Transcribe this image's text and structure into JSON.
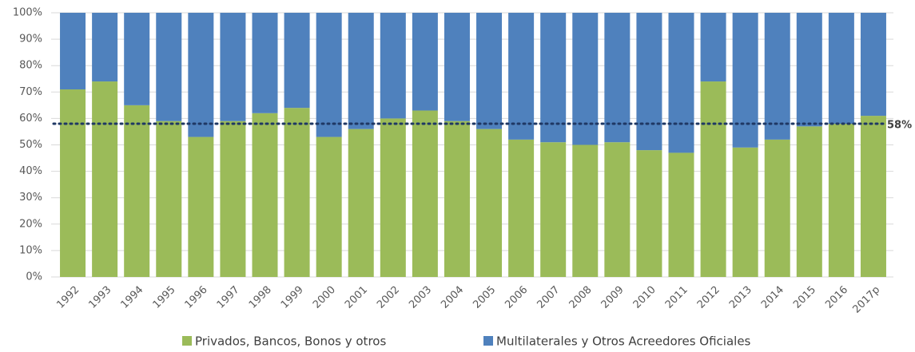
{
  "chart_data": {
    "type": "stacked_bar",
    "categories": [
      "1992",
      "1993",
      "1994",
      "1995",
      "1996",
      "1997",
      "1998",
      "1999",
      "2000",
      "2001",
      "2002",
      "2003",
      "2004",
      "2005",
      "2006",
      "2007",
      "2008",
      "2009",
      "2010",
      "2011",
      "2012",
      "2013",
      "2014",
      "2015",
      "2016",
      "2017p"
    ],
    "series": [
      {
        "name": "Privados, Bancos, Bonos y otros",
        "color": "#9bbb59",
        "values": [
          71,
          74,
          65,
          59,
          53,
          59,
          62,
          64,
          53,
          56,
          60,
          63,
          59,
          56,
          52,
          51,
          50,
          51,
          48,
          47,
          74,
          49,
          52,
          57,
          58,
          61
        ]
      },
      {
        "name": "Multilaterales y Otros Acreedores Oficiales",
        "color": "#4f81bd",
        "values": [
          29,
          26,
          35,
          41,
          47,
          41,
          38,
          36,
          47,
          44,
          40,
          37,
          41,
          44,
          48,
          49,
          50,
          49,
          52,
          53,
          26,
          51,
          48,
          43,
          42,
          39
        ]
      }
    ],
    "ylim": [
      0,
      100
    ],
    "yticks": [
      {
        "value": 0,
        "label": "0%"
      },
      {
        "value": 10,
        "label": "10%"
      },
      {
        "value": 20,
        "label": "20%"
      },
      {
        "value": 30,
        "label": "30%"
      },
      {
        "value": 40,
        "label": "40%"
      },
      {
        "value": 50,
        "label": "50%"
      },
      {
        "value": 60,
        "label": "60%"
      },
      {
        "value": 70,
        "label": "70%"
      },
      {
        "value": 80,
        "label": "80%"
      },
      {
        "value": 90,
        "label": "90%"
      },
      {
        "value": 100,
        "label": "100%"
      }
    ],
    "grid": true,
    "reference_line": {
      "value": 58,
      "label": "58%",
      "color": "#1f3864"
    },
    "legend": "bottom"
  }
}
